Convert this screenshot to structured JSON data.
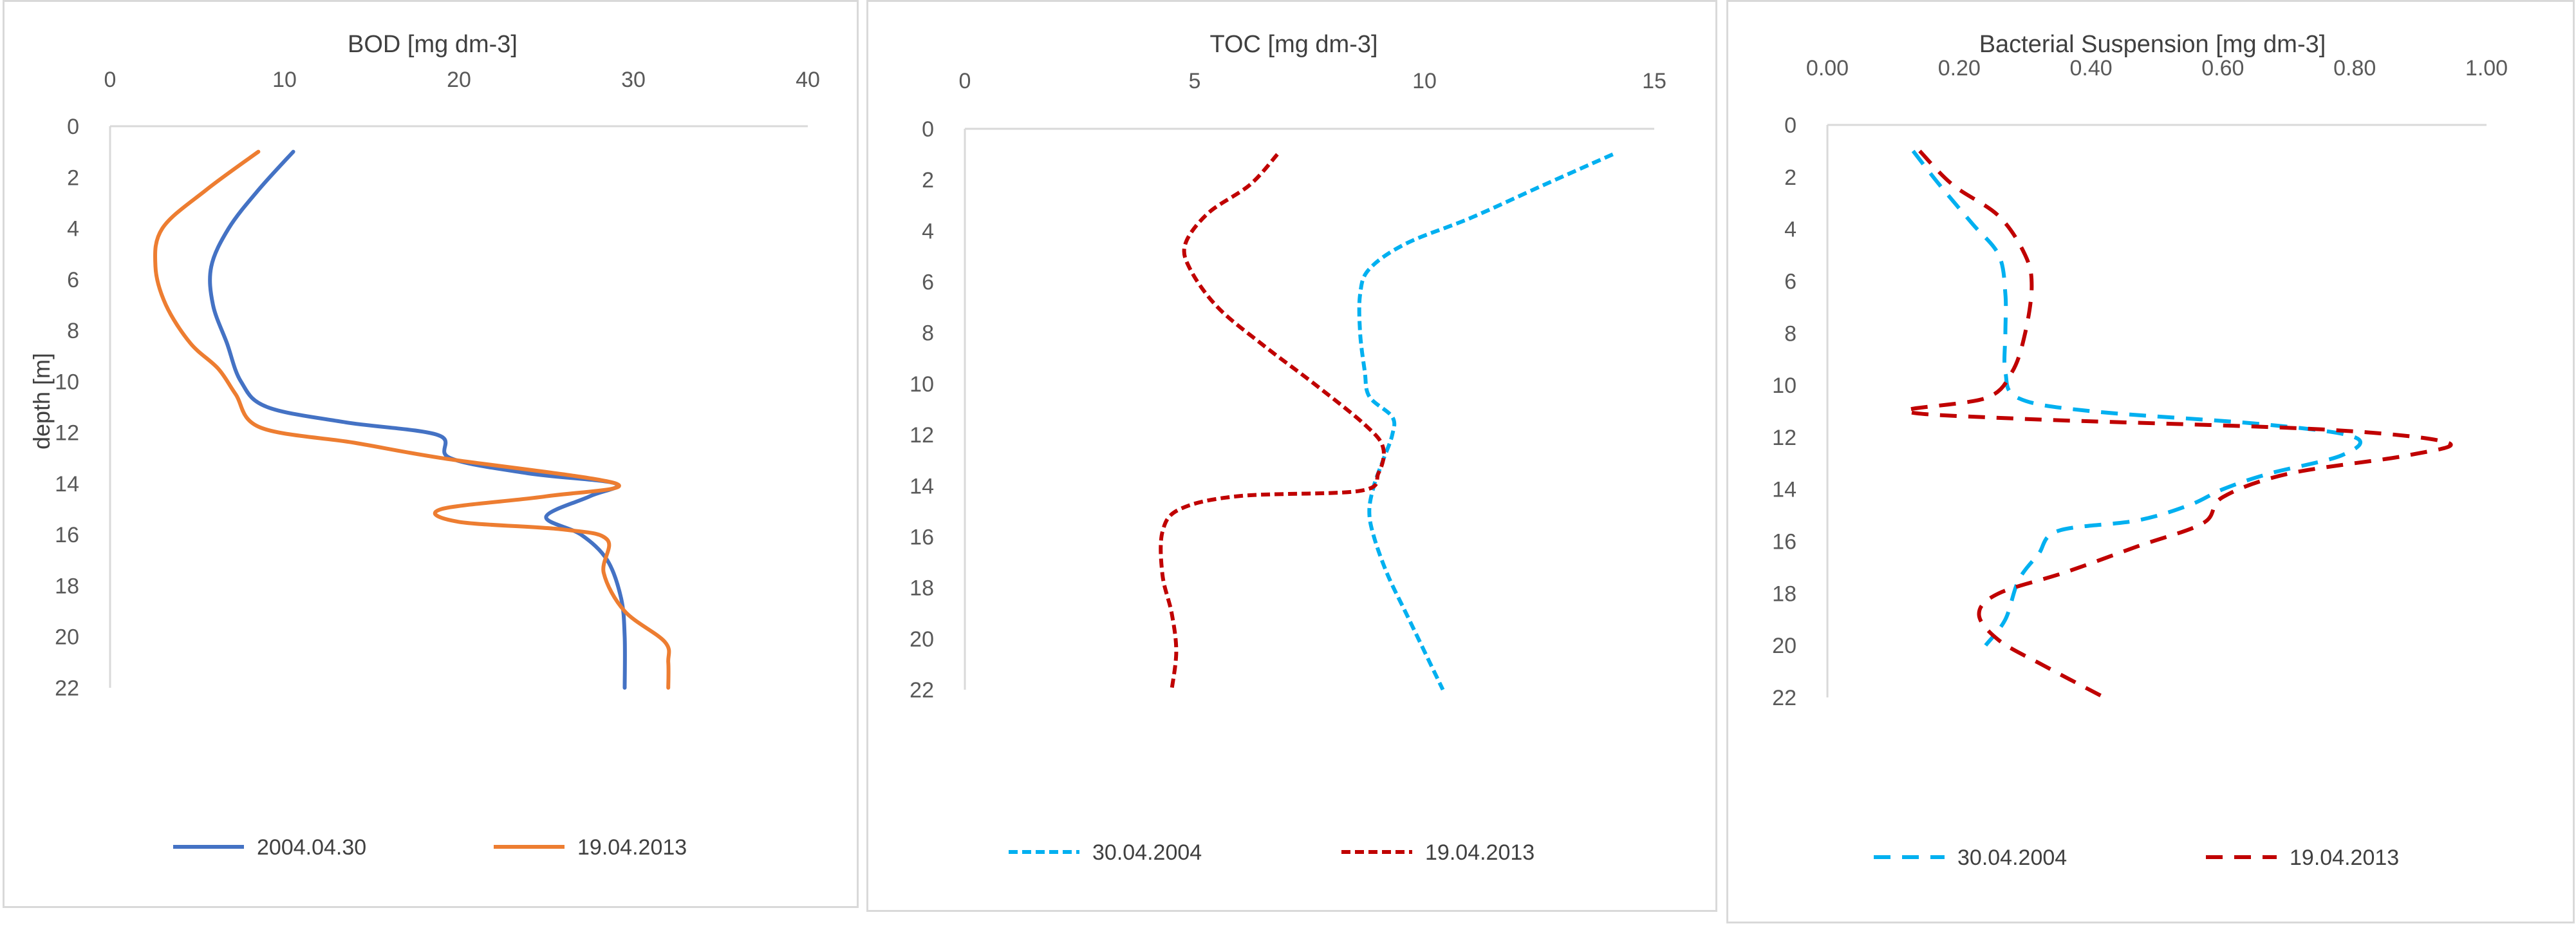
{
  "chart_data": [
    {
      "type": "line",
      "title": "BOD [mg dm-3]",
      "xlabel": "BOD [mg dm-3]",
      "ylabel": "depth [m]",
      "x_axis_position": "top",
      "y_inverted": true,
      "xlim": [
        0,
        40
      ],
      "ylim": [
        0,
        22
      ],
      "x_ticks": [
        "0",
        "10",
        "20",
        "30",
        "40"
      ],
      "y_ticks": [
        "0",
        "2",
        "4",
        "6",
        "8",
        "10",
        "12",
        "14",
        "16",
        "18",
        "20",
        "22"
      ],
      "grid": false,
      "legend": "bottom",
      "series": [
        {
          "name": "2004.04.30",
          "color": "#4472c4",
          "dash": "solid",
          "points": [
            [
              10.5,
              1
            ],
            [
              8.5,
              2.5
            ],
            [
              6.8,
              4
            ],
            [
              5.8,
              5.5
            ],
            [
              5.9,
              7
            ],
            [
              6.7,
              8.5
            ],
            [
              7.5,
              10
            ],
            [
              9.0,
              11
            ],
            [
              13.5,
              11.6
            ],
            [
              18.8,
              12.1
            ],
            [
              19.5,
              13
            ],
            [
              24.0,
              13.6
            ],
            [
              29.0,
              14
            ],
            [
              27.5,
              14.5
            ],
            [
              25.0,
              15.3
            ],
            [
              27.0,
              16
            ],
            [
              28.5,
              17
            ],
            [
              29.3,
              18.5
            ],
            [
              29.5,
              20
            ],
            [
              29.5,
              22
            ]
          ]
        },
        {
          "name": "19.04.2013",
          "color": "#ed7d31",
          "dash": "solid",
          "points": [
            [
              8.5,
              1
            ],
            [
              5.5,
              2.5
            ],
            [
              3.0,
              4
            ],
            [
              2.6,
              5.5
            ],
            [
              3.2,
              7
            ],
            [
              4.6,
              8.5
            ],
            [
              6.2,
              9.5
            ],
            [
              7.2,
              10.5
            ],
            [
              8.6,
              11.8
            ],
            [
              14.0,
              12.4
            ],
            [
              19.0,
              13
            ],
            [
              29.0,
              14
            ],
            [
              25.0,
              14.5
            ],
            [
              19.0,
              15
            ],
            [
              20.0,
              15.5
            ],
            [
              26.0,
              15.8
            ],
            [
              28.5,
              16.2
            ],
            [
              28.3,
              17.5
            ],
            [
              29.5,
              19
            ],
            [
              31.8,
              20.2
            ],
            [
              32.0,
              21
            ],
            [
              32.0,
              22
            ]
          ]
        }
      ]
    },
    {
      "type": "line",
      "title": "TOC [mg dm-3]",
      "xlabel": "TOC [mg dm-3]",
      "ylabel": "",
      "x_axis_position": "top",
      "y_inverted": true,
      "xlim": [
        0,
        15
      ],
      "ylim": [
        0,
        22
      ],
      "x_ticks": [
        "0",
        "5",
        "10",
        "15"
      ],
      "y_ticks": [
        "0",
        "2",
        "4",
        "6",
        "8",
        "10",
        "12",
        "14",
        "16",
        "18",
        "20",
        "22"
      ],
      "grid": false,
      "legend": "bottom",
      "series": [
        {
          "name": "30.04.2004",
          "color": "#00b0f0",
          "dash": "dotted",
          "points": [
            [
              14.1,
              1
            ],
            [
              12.6,
              2.2
            ],
            [
              11.0,
              3.5
            ],
            [
              9.6,
              4.5
            ],
            [
              8.8,
              5.5
            ],
            [
              8.6,
              6.5
            ],
            [
              8.6,
              8
            ],
            [
              8.7,
              9.5
            ],
            [
              8.8,
              10.5
            ],
            [
              9.3,
              11.3
            ],
            [
              9.3,
              12
            ],
            [
              9.1,
              13
            ],
            [
              8.9,
              14
            ],
            [
              8.8,
              15
            ],
            [
              8.9,
              16
            ],
            [
              9.2,
              17.5
            ],
            [
              9.6,
              19
            ],
            [
              10.0,
              20.5
            ],
            [
              10.4,
              22
            ]
          ]
        },
        {
          "name": "19.04.2013",
          "color": "#c00000",
          "dash": "dotted",
          "points": [
            [
              6.8,
              1
            ],
            [
              6.2,
              2.2
            ],
            [
              5.3,
              3.3
            ],
            [
              4.8,
              4.5
            ],
            [
              4.9,
              5.5
            ],
            [
              5.5,
              7
            ],
            [
              6.5,
              8.5
            ],
            [
              7.6,
              10
            ],
            [
              8.7,
              11.6
            ],
            [
              9.1,
              12.5
            ],
            [
              9.0,
              13.5
            ],
            [
              8.6,
              14.2
            ],
            [
              6.0,
              14.4
            ],
            [
              4.7,
              14.9
            ],
            [
              4.3,
              15.8
            ],
            [
              4.3,
              17.5
            ],
            [
              4.5,
              19
            ],
            [
              4.6,
              20.5
            ],
            [
              4.5,
              22
            ]
          ]
        }
      ]
    },
    {
      "type": "line",
      "title": "Bacterial Suspension [mg dm-3]",
      "xlabel": "Bacterial Suspension [mg dm-3]",
      "ylabel": "",
      "x_axis_position": "top",
      "y_inverted": true,
      "xlim": [
        0,
        1
      ],
      "ylim": [
        0,
        22
      ],
      "x_ticks": [
        "0.00",
        "0.20",
        "0.40",
        "0.60",
        "0.80",
        "1.00"
      ],
      "y_ticks": [
        "0",
        "2",
        "4",
        "6",
        "8",
        "10",
        "12",
        "14",
        "16",
        "18",
        "20",
        "22"
      ],
      "grid": false,
      "legend": "bottom",
      "series": [
        {
          "name": "30.04.2004",
          "color": "#00b0f0",
          "dash": "dashed",
          "points": [
            [
              0.13,
              1
            ],
            [
              0.17,
              2.3
            ],
            [
              0.22,
              3.8
            ],
            [
              0.26,
              5
            ],
            [
              0.27,
              6.5
            ],
            [
              0.27,
              8
            ],
            [
              0.27,
              9.5
            ],
            [
              0.29,
              10.5
            ],
            [
              0.4,
              11
            ],
            [
              0.66,
              11.5
            ],
            [
              0.8,
              12
            ],
            [
              0.78,
              12.7
            ],
            [
              0.67,
              13.4
            ],
            [
              0.6,
              14
            ],
            [
              0.55,
              14.6
            ],
            [
              0.47,
              15.2
            ],
            [
              0.35,
              15.6
            ],
            [
              0.32,
              16.5
            ],
            [
              0.29,
              17.5
            ],
            [
              0.27,
              19
            ],
            [
              0.24,
              20
            ]
          ]
        },
        {
          "name": "19.04.2013",
          "color": "#c00000",
          "dash": "dashed",
          "points": [
            [
              0.14,
              1
            ],
            [
              0.19,
              2.3
            ],
            [
              0.26,
              3.5
            ],
            [
              0.3,
              5
            ],
            [
              0.31,
              6.2
            ],
            [
              0.3,
              8
            ],
            [
              0.28,
              9.5
            ],
            [
              0.24,
              10.5
            ],
            [
              0.12,
              11
            ],
            [
              0.3,
              11.3
            ],
            [
              0.75,
              11.7
            ],
            [
              0.94,
              12.2
            ],
            [
              0.88,
              12.7
            ],
            [
              0.7,
              13.4
            ],
            [
              0.6,
              14.3
            ],
            [
              0.57,
              15.3
            ],
            [
              0.47,
              16.2
            ],
            [
              0.36,
              17.2
            ],
            [
              0.26,
              18
            ],
            [
              0.23,
              18.8
            ],
            [
              0.26,
              19.8
            ],
            [
              0.33,
              20.8
            ],
            [
              0.42,
              22
            ]
          ]
        }
      ]
    }
  ]
}
